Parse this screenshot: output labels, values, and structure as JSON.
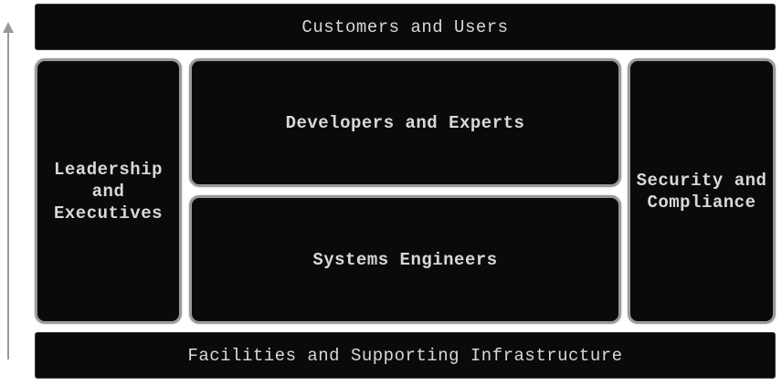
{
  "diagram": {
    "top_band": "Customers and Users",
    "bottom_band": "Facilities and Supporting Infrastructure",
    "left_panel": "Leadership\nand\nExecutives",
    "center_top_panel": "Developers and Experts",
    "center_bottom_panel": "Systems Engineers",
    "right_panel": "Security and\nCompliance"
  },
  "colors": {
    "box_fill": "#0a0a0a",
    "box_text": "#d8d8d8",
    "panel_border": "#9a9a9a",
    "arrow": "#9a9a9a"
  }
}
